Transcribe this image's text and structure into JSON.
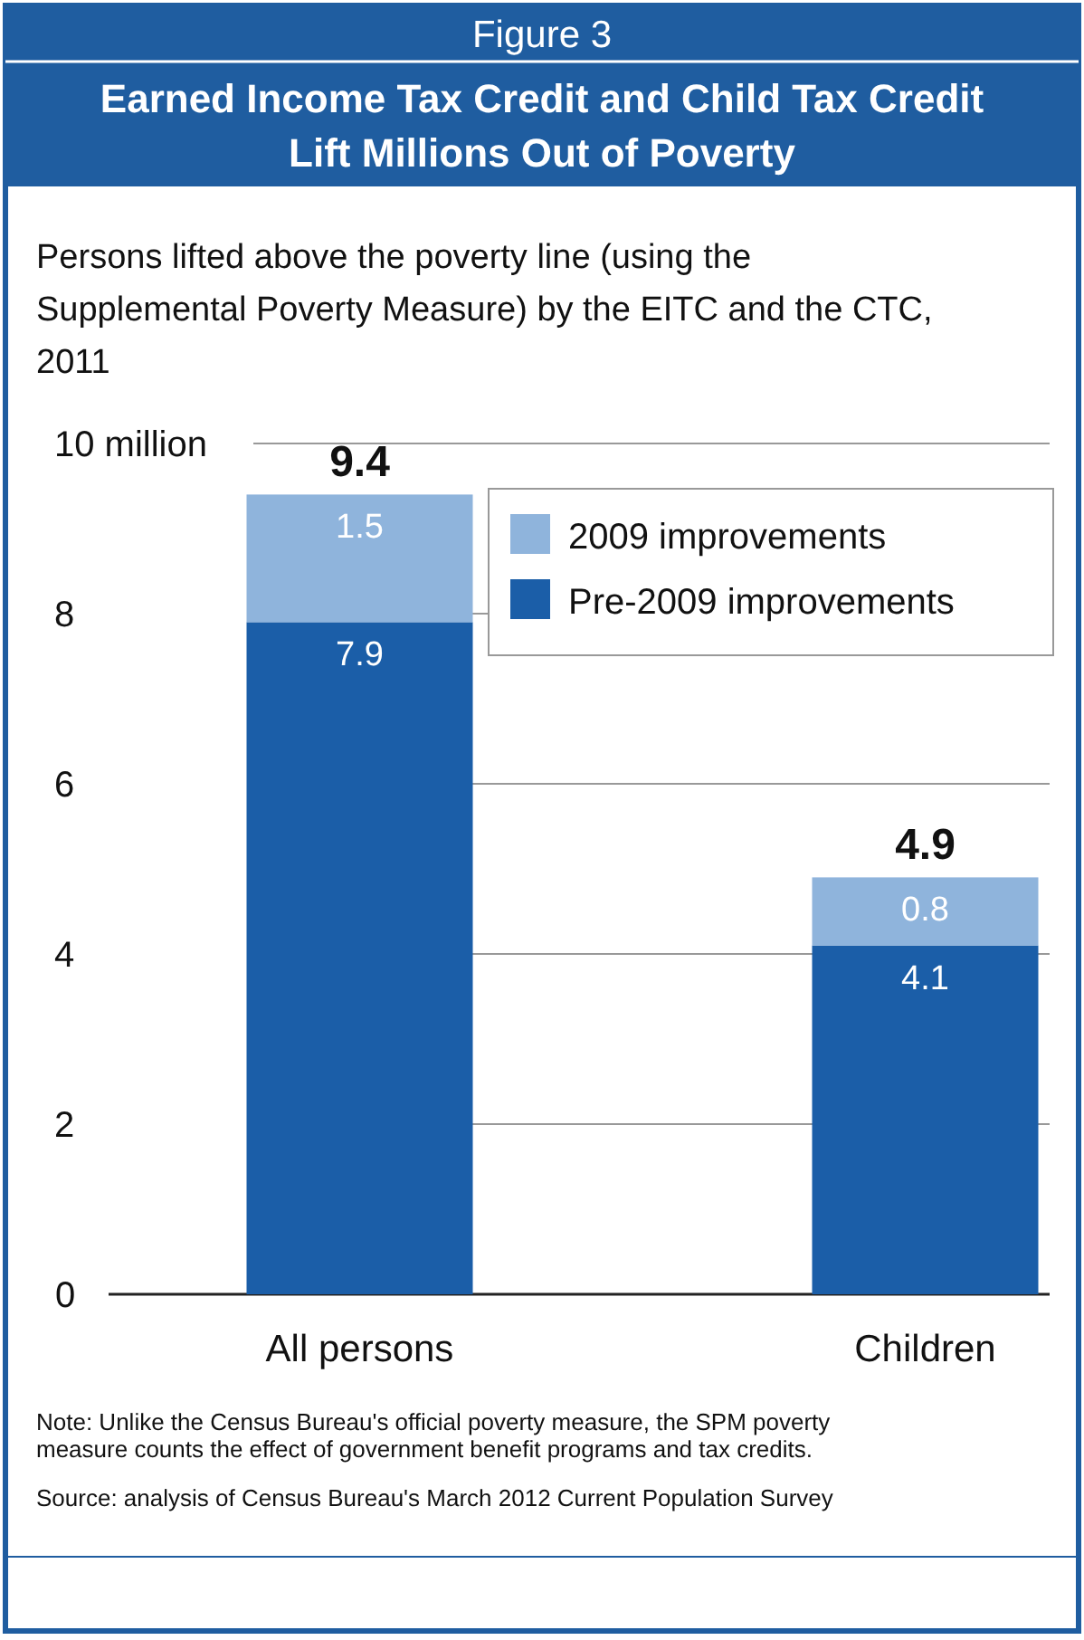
{
  "chart_data": {
    "type": "bar",
    "title": "Earned Income Tax Credit and Child Tax Credit Lift Millions Out of Poverty",
    "subtitle": "Persons lifted above the poverty line (using the Supplemental Poverty Measure) by the EITC and the CTC, 2011",
    "annotations": [
      "Figure 3",
      "Note: Unlike the Census Bureau's official poverty measure, the SPM poverty measure counts the effect of government benefit programs and tax credits.",
      "Source: analysis of Census Bureau's March 2012 Current Population Survey"
    ],
    "categories": [
      "All persons",
      "Children"
    ],
    "series": [
      {
        "name": "Pre-2009 improvements",
        "color": "#1b5ea8",
        "values": [
          7.9,
          4.1
        ]
      },
      {
        "name": "2009 improvements",
        "color": "#8fb4dc",
        "values": [
          1.5,
          0.8
        ]
      }
    ],
    "stacked": true,
    "data_labels": true,
    "totals": [
      "9.4",
      "4.9"
    ],
    "ylim": [
      0,
      10
    ],
    "yticks": [
      0,
      2,
      4,
      6,
      8,
      {
        "value": 10,
        "label": "10 million"
      }
    ],
    "grid": "y",
    "legend": "top right"
  }
}
